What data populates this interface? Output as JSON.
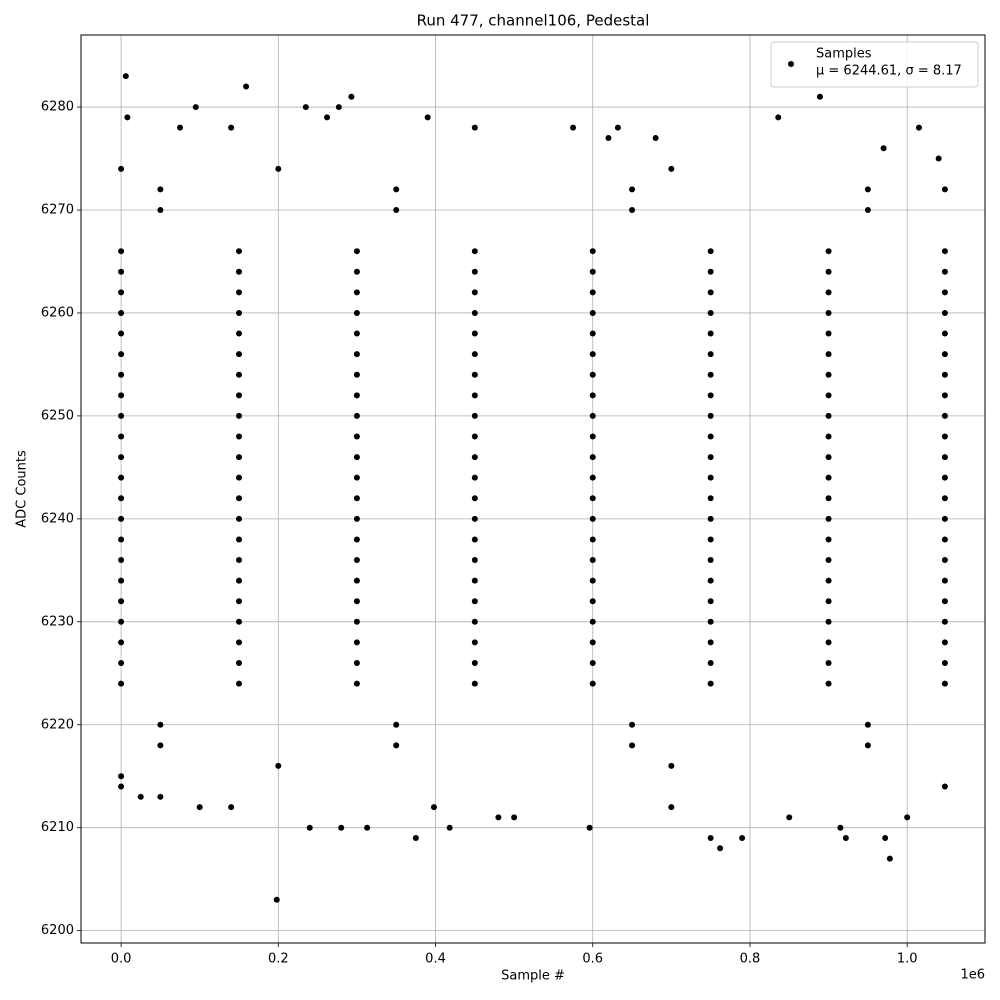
{
  "chart_data": {
    "type": "scatter",
    "title": "Run 477, channel106, Pedestal",
    "x_label": "Sample #",
    "y_label": "ADC Counts",
    "x_offset_label": "1e6",
    "xlim": [
      -51000,
      1099000
    ],
    "ylim": [
      6198.8,
      6287
    ],
    "xticks": [
      {
        "value": 0,
        "label": "0.0"
      },
      {
        "value": 200000,
        "label": "0.2"
      },
      {
        "value": 400000,
        "label": "0.4"
      },
      {
        "value": 600000,
        "label": "0.6"
      },
      {
        "value": 800000,
        "label": "0.8"
      },
      {
        "value": 1000000,
        "label": "1.0"
      }
    ],
    "yticks": [
      6200,
      6210,
      6220,
      6230,
      6240,
      6250,
      6260,
      6270,
      6280
    ],
    "grid": true,
    "legend_position": "upper right",
    "legend_note": "μ = 6244.61, σ = 8.17",
    "series": [
      {
        "name": "Samples",
        "color": "#000000",
        "x": [
          0,
          150000,
          300000,
          450000,
          600000,
          750000,
          900000,
          1048000,
          0,
          150000,
          300000,
          450000,
          600000,
          750000,
          900000,
          1048000,
          0,
          150000,
          300000,
          450000,
          600000,
          750000,
          900000,
          1048000,
          0,
          150000,
          300000,
          450000,
          600000,
          750000,
          900000,
          1048000,
          0,
          150000,
          300000,
          450000,
          600000,
          750000,
          900000,
          1048000,
          0,
          150000,
          300000,
          450000,
          600000,
          750000,
          900000,
          1048000,
          0,
          150000,
          300000,
          450000,
          600000,
          750000,
          900000,
          1048000,
          0,
          150000,
          300000,
          450000,
          600000,
          750000,
          900000,
          1048000,
          0,
          150000,
          300000,
          450000,
          600000,
          750000,
          900000,
          1048000,
          0,
          150000,
          300000,
          450000,
          600000,
          750000,
          900000,
          1048000,
          0,
          150000,
          300000,
          450000,
          600000,
          750000,
          900000,
          1048000,
          0,
          150000,
          300000,
          450000,
          600000,
          750000,
          900000,
          1048000,
          0,
          150000,
          300000,
          450000,
          600000,
          750000,
          900000,
          1048000,
          0,
          150000,
          300000,
          450000,
          600000,
          750000,
          900000,
          1048000,
          0,
          150000,
          300000,
          450000,
          600000,
          750000,
          900000,
          1048000,
          0,
          150000,
          300000,
          450000,
          600000,
          750000,
          900000,
          1048000,
          0,
          150000,
          300000,
          450000,
          600000,
          750000,
          900000,
          1048000,
          0,
          150000,
          300000,
          450000,
          600000,
          750000,
          900000,
          1048000,
          0,
          150000,
          300000,
          450000,
          600000,
          750000,
          900000,
          1048000,
          0,
          150000,
          300000,
          450000,
          600000,
          750000,
          900000,
          1048000,
          0,
          150000,
          300000,
          450000,
          600000,
          750000,
          900000,
          1048000,
          0,
          150000,
          300000,
          450000,
          600000,
          750000,
          900000,
          1048000,
          50000,
          350000,
          650000,
          950000,
          50000,
          350000,
          650000,
          950000,
          50000,
          350000,
          650000,
          950000,
          50000,
          350000,
          650000,
          950000,
          200000,
          700000,
          200000,
          700000,
          6000,
          8000,
          198000,
          159000,
          95000,
          235000,
          293000,
          277000,
          889000,
          240000,
          280000,
          313000,
          418000,
          596000,
          375000,
          762000,
          978000,
          750000,
          790000,
          922000,
          972000,
          1000000,
          398000,
          100000,
          140000,
          915000,
          836000,
          1015000,
          632000,
          575000,
          450000,
          390000,
          0,
          0,
          25000,
          50000,
          1048000,
          1048000,
          0,
          500000,
          480000,
          700000,
          850000,
          262000,
          75000,
          140000,
          1040000,
          970000,
          680000,
          620000
        ],
        "values": [
          6224,
          6224,
          6224,
          6224,
          6224,
          6224,
          6224,
          6224,
          6226,
          6226,
          6226,
          6226,
          6226,
          6226,
          6226,
          6226,
          6228,
          6228,
          6228,
          6228,
          6228,
          6228,
          6228,
          6228,
          6230,
          6230,
          6230,
          6230,
          6230,
          6230,
          6230,
          6230,
          6232,
          6232,
          6232,
          6232,
          6232,
          6232,
          6232,
          6232,
          6234,
          6234,
          6234,
          6234,
          6234,
          6234,
          6234,
          6234,
          6236,
          6236,
          6236,
          6236,
          6236,
          6236,
          6236,
          6236,
          6238,
          6238,
          6238,
          6238,
          6238,
          6238,
          6238,
          6238,
          6240,
          6240,
          6240,
          6240,
          6240,
          6240,
          6240,
          6240,
          6242,
          6242,
          6242,
          6242,
          6242,
          6242,
          6242,
          6242,
          6244,
          6244,
          6244,
          6244,
          6244,
          6244,
          6244,
          6244,
          6246,
          6246,
          6246,
          6246,
          6246,
          6246,
          6246,
          6246,
          6248,
          6248,
          6248,
          6248,
          6248,
          6248,
          6248,
          6248,
          6250,
          6250,
          6250,
          6250,
          6250,
          6250,
          6250,
          6250,
          6252,
          6252,
          6252,
          6252,
          6252,
          6252,
          6252,
          6252,
          6254,
          6254,
          6254,
          6254,
          6254,
          6254,
          6254,
          6254,
          6256,
          6256,
          6256,
          6256,
          6256,
          6256,
          6256,
          6256,
          6258,
          6258,
          6258,
          6258,
          6258,
          6258,
          6258,
          6258,
          6260,
          6260,
          6260,
          6260,
          6260,
          6260,
          6260,
          6260,
          6262,
          6262,
          6262,
          6262,
          6262,
          6262,
          6262,
          6262,
          6264,
          6264,
          6264,
          6264,
          6264,
          6264,
          6264,
          6264,
          6266,
          6266,
          6266,
          6266,
          6266,
          6266,
          6266,
          6266,
          6218,
          6218,
          6218,
          6218,
          6220,
          6220,
          6220,
          6220,
          6270,
          6270,
          6270,
          6270,
          6272,
          6272,
          6272,
          6272,
          6216,
          6216,
          6274,
          6274,
          6283,
          6279,
          6203,
          6282,
          6280,
          6280,
          6281,
          6280,
          6281,
          6210,
          6210,
          6210,
          6210,
          6210,
          6209,
          6208,
          6207,
          6209,
          6209,
          6209,
          6209,
          6211,
          6212,
          6212,
          6212,
          6210,
          6279,
          6278,
          6278,
          6278,
          6278,
          6279,
          6214,
          6215,
          6213,
          6213,
          6214,
          6272,
          6274,
          6211,
          6211,
          6212,
          6211,
          6279,
          6278,
          6278,
          6275,
          6276,
          6277,
          6277
        ]
      }
    ]
  }
}
